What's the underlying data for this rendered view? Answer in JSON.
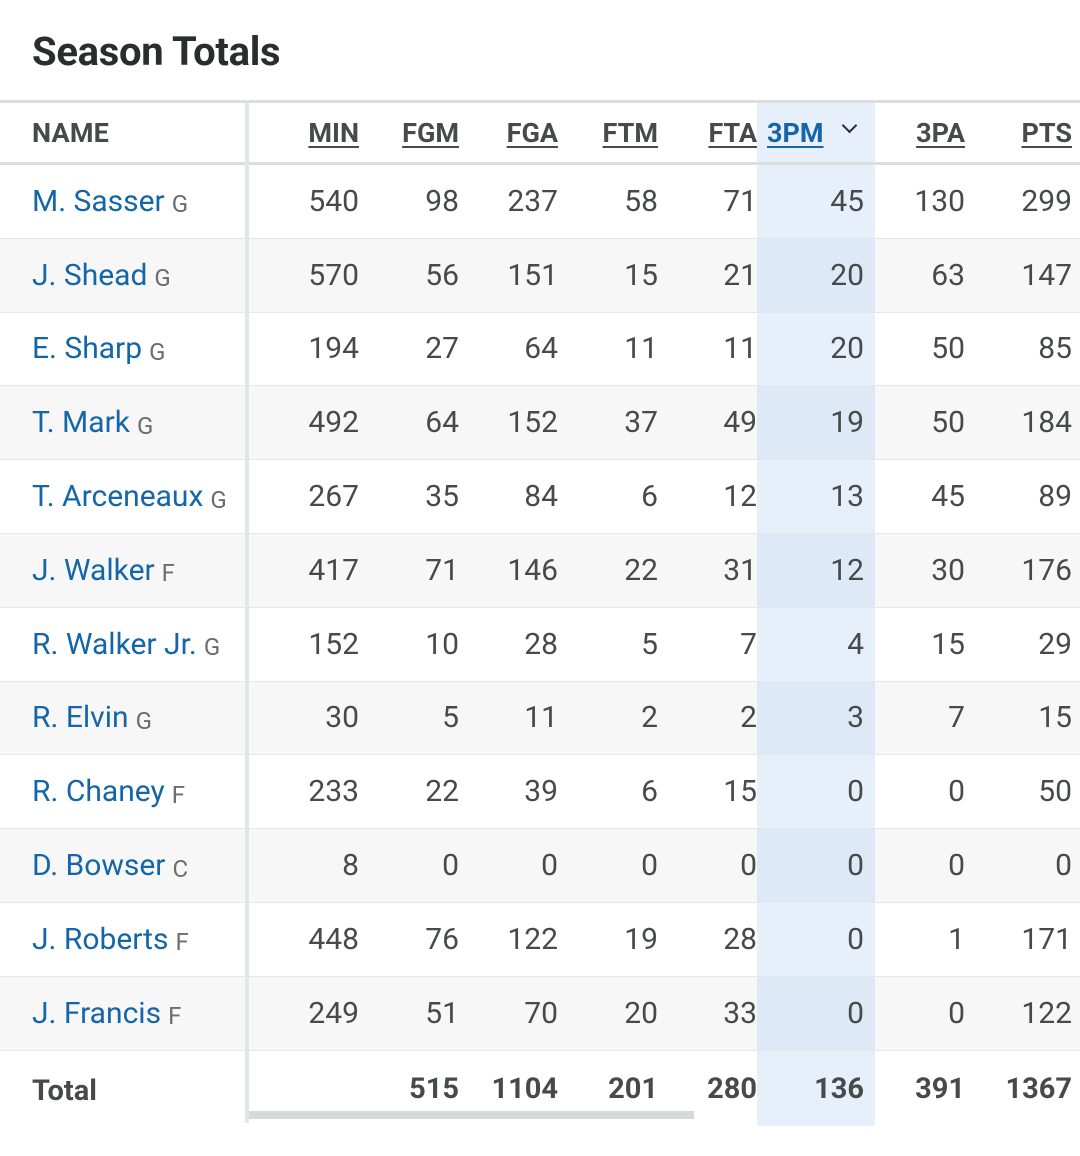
{
  "title": "Season Totals",
  "columns": {
    "name": "NAME",
    "min": "MIN",
    "fgm": "FGM",
    "fga": "FGA",
    "ftm": "FTM",
    "fta": "FTA",
    "threepm": "3PM",
    "threepa": "3PA",
    "pts": "PTS"
  },
  "sort": {
    "column": "3PM",
    "direction": "descending",
    "icon": "chevron-down-icon"
  },
  "colors": {
    "link": "#1466a8",
    "sorted_column_bg": "#e7f0fa",
    "text": "#48494a"
  },
  "players": [
    {
      "name": "M. Sasser",
      "pos": "G",
      "min": "540",
      "fgm": "98",
      "fga": "237",
      "ftm": "58",
      "fta": "71",
      "threepm": "45",
      "threepa": "130",
      "pts": "299"
    },
    {
      "name": "J. Shead",
      "pos": "G",
      "min": "570",
      "fgm": "56",
      "fga": "151",
      "ftm": "15",
      "fta": "21",
      "threepm": "20",
      "threepa": "63",
      "pts": "147"
    },
    {
      "name": "E. Sharp",
      "pos": "G",
      "min": "194",
      "fgm": "27",
      "fga": "64",
      "ftm": "11",
      "fta": "11",
      "threepm": "20",
      "threepa": "50",
      "pts": "85"
    },
    {
      "name": "T. Mark",
      "pos": "G",
      "min": "492",
      "fgm": "64",
      "fga": "152",
      "ftm": "37",
      "fta": "49",
      "threepm": "19",
      "threepa": "50",
      "pts": "184"
    },
    {
      "name": "T. Arceneaux",
      "pos": "G",
      "min": "267",
      "fgm": "35",
      "fga": "84",
      "ftm": "6",
      "fta": "12",
      "threepm": "13",
      "threepa": "45",
      "pts": "89"
    },
    {
      "name": "J. Walker",
      "pos": "F",
      "min": "417",
      "fgm": "71",
      "fga": "146",
      "ftm": "22",
      "fta": "31",
      "threepm": "12",
      "threepa": "30",
      "pts": "176"
    },
    {
      "name": "R. Walker Jr.",
      "pos": "G",
      "min": "152",
      "fgm": "10",
      "fga": "28",
      "ftm": "5",
      "fta": "7",
      "threepm": "4",
      "threepa": "15",
      "pts": "29"
    },
    {
      "name": "R. Elvin",
      "pos": "G",
      "min": "30",
      "fgm": "5",
      "fga": "11",
      "ftm": "2",
      "fta": "2",
      "threepm": "3",
      "threepa": "7",
      "pts": "15"
    },
    {
      "name": "R. Chaney",
      "pos": "F",
      "min": "233",
      "fgm": "22",
      "fga": "39",
      "ftm": "6",
      "fta": "15",
      "threepm": "0",
      "threepa": "0",
      "pts": "50"
    },
    {
      "name": "D. Bowser",
      "pos": "C",
      "min": "8",
      "fgm": "0",
      "fga": "0",
      "ftm": "0",
      "fta": "0",
      "threepm": "0",
      "threepa": "0",
      "pts": "0"
    },
    {
      "name": "J. Roberts",
      "pos": "F",
      "min": "448",
      "fgm": "76",
      "fga": "122",
      "ftm": "19",
      "fta": "28",
      "threepm": "0",
      "threepa": "1",
      "pts": "171"
    },
    {
      "name": "J. Francis",
      "pos": "F",
      "min": "249",
      "fgm": "51",
      "fga": "70",
      "ftm": "20",
      "fta": "33",
      "threepm": "0",
      "threepa": "0",
      "pts": "122"
    }
  ],
  "totals": {
    "label": "Total",
    "min": "",
    "fgm": "515",
    "fga": "1104",
    "ftm": "201",
    "fta": "280",
    "threepm": "136",
    "threepa": "391",
    "pts": "1367"
  }
}
